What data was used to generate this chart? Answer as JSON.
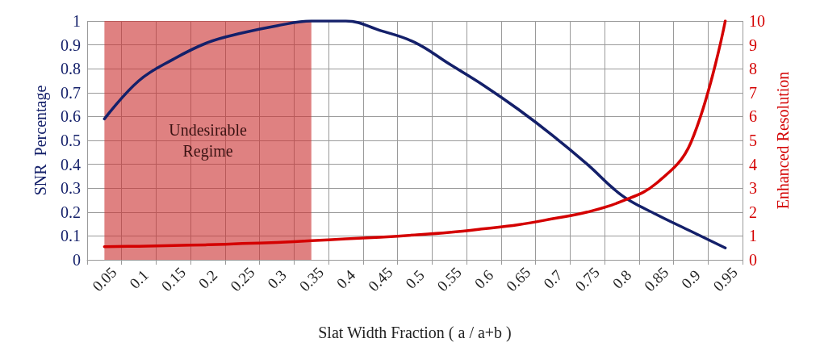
{
  "chart_data": {
    "type": "line",
    "xlabel": "Slat Width Fraction ( a / a+b )",
    "ylabel": "SNR  Percentage",
    "y2label": "Enhanced Resolution",
    "categories": [
      "0.05",
      "0.1",
      "0.15",
      "0.2",
      "0.25",
      "0.3",
      "0.35",
      "0.4",
      "0.45",
      "0.5",
      "0.55",
      "0.6",
      "0.65",
      "0.7",
      "0.75",
      "0.8",
      "0.85",
      "0.9",
      "0.95"
    ],
    "ylim": [
      0,
      1
    ],
    "yticks": [
      0,
      0.1,
      0.2,
      0.3,
      0.4,
      0.5,
      0.6,
      0.7,
      0.8,
      0.9,
      1
    ],
    "y2lim": [
      0,
      10
    ],
    "y2ticks": [
      0,
      1,
      2,
      3,
      4,
      5,
      6,
      7,
      8,
      9,
      10
    ],
    "grid": true,
    "marker": "none",
    "line_style": "solid",
    "series": [
      {
        "color": "#14206a",
        "values": [
          0.59,
          0.75,
          0.84,
          0.91,
          0.95,
          0.98,
          1.0,
          1.0,
          0.96,
          0.91,
          0.82,
          0.73,
          0.63,
          0.52,
          0.4,
          0.27,
          0.19,
          0.12,
          0.05
        ]
      },
      {
        "color": "#d40000",
        "axis": "y2",
        "values": [
          0.55,
          0.57,
          0.6,
          0.63,
          0.68,
          0.73,
          0.8,
          0.88,
          0.95,
          1.04,
          1.15,
          1.3,
          1.47,
          1.72,
          2.0,
          2.45,
          3.2,
          4.9,
          10.0
        ]
      }
    ],
    "bands": [
      {
        "axis": "x",
        "from": "0.05",
        "to": "0.35",
        "label": "Undesirable\nRegime",
        "color": "#cc3333"
      }
    ]
  }
}
